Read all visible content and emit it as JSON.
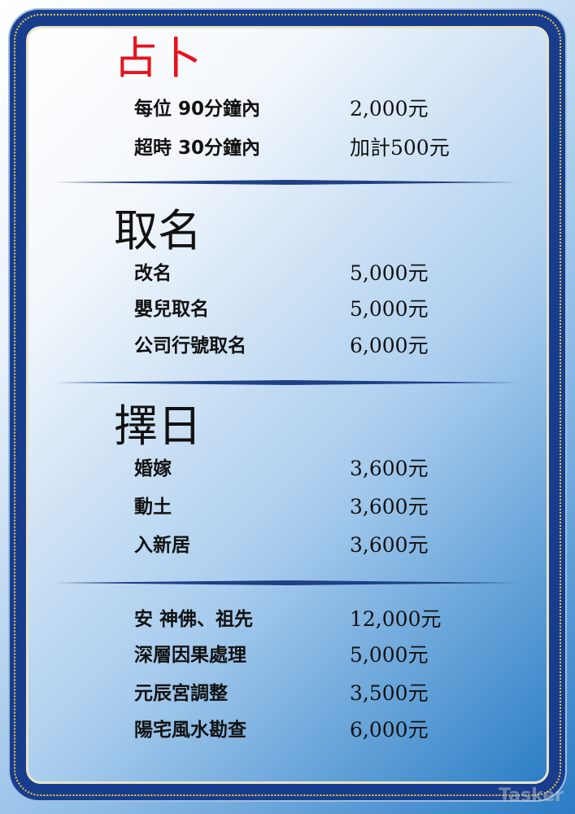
{
  "sections": [
    {
      "title": "占卜",
      "title_color": "#e8121c",
      "items": [
        {
          "label": "每位 90分鐘內",
          "price": "2,000元"
        },
        {
          "label": "超時 30分鐘內",
          "price": "加計500元"
        }
      ]
    },
    {
      "title": "取名",
      "items": [
        {
          "label": "改名",
          "price": "5,000元"
        },
        {
          "label": "嬰兒取名",
          "price": "5,000元"
        },
        {
          "label": "公司行號取名",
          "price": "6,000元"
        }
      ]
    },
    {
      "title": "擇日",
      "items": [
        {
          "label": "婚嫁",
          "price": "3,600元"
        },
        {
          "label": "動土",
          "price": "3,600元"
        },
        {
          "label": "入新居",
          "price": "3,600元"
        }
      ]
    },
    {
      "title": "",
      "items": [
        {
          "label": "安 神佛、祖先",
          "price": "12,000元"
        },
        {
          "label": "深層因果處理",
          "price": "5,000元"
        },
        {
          "label": "元辰宮調整",
          "price": "3,500元"
        },
        {
          "label": "陽宅風水勘查",
          "price": "6,000元"
        }
      ]
    }
  ],
  "watermark": "Tasker",
  "colors": {
    "frame": "#173d8c",
    "ornament": "#f1c94a",
    "divider": "#1f3f86"
  }
}
